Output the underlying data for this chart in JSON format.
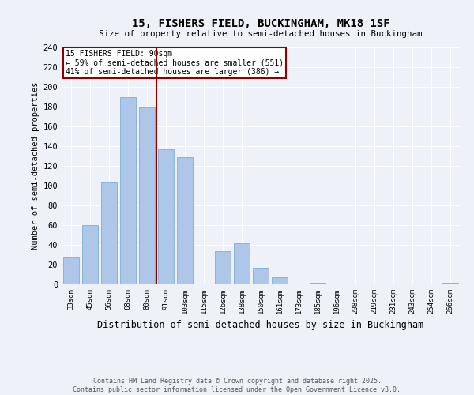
{
  "title1": "15, FISHERS FIELD, BUCKINGHAM, MK18 1SF",
  "title2": "Size of property relative to semi-detached houses in Buckingham",
  "xlabel": "Distribution of semi-detached houses by size in Buckingham",
  "ylabel": "Number of semi-detached properties",
  "footnote": "Contains HM Land Registry data © Crown copyright and database right 2025.\nContains public sector information licensed under the Open Government Licence v3.0.",
  "bar_labels": [
    "33sqm",
    "45sqm",
    "56sqm",
    "68sqm",
    "80sqm",
    "91sqm",
    "103sqm",
    "115sqm",
    "126sqm",
    "138sqm",
    "150sqm",
    "161sqm",
    "173sqm",
    "185sqm",
    "196sqm",
    "208sqm",
    "219sqm",
    "231sqm",
    "243sqm",
    "254sqm",
    "266sqm"
  ],
  "bar_values": [
    28,
    60,
    103,
    190,
    179,
    137,
    129,
    0,
    34,
    42,
    17,
    7,
    0,
    2,
    0,
    0,
    0,
    0,
    0,
    0,
    2
  ],
  "bar_color": "#aec6e8",
  "bar_edge_color": "#7aafd4",
  "vline_color": "#8b0000",
  "annotation_title": "15 FISHERS FIELD: 90sqm",
  "annotation_line1": "← 59% of semi-detached houses are smaller (551)",
  "annotation_line2": "41% of semi-detached houses are larger (386) →",
  "annotation_box_color": "#8b0000",
  "ylim": [
    0,
    240
  ],
  "yticks": [
    0,
    20,
    40,
    60,
    80,
    100,
    120,
    140,
    160,
    180,
    200,
    220,
    240
  ],
  "background_color": "#eef2f8",
  "grid_color": "#ffffff"
}
